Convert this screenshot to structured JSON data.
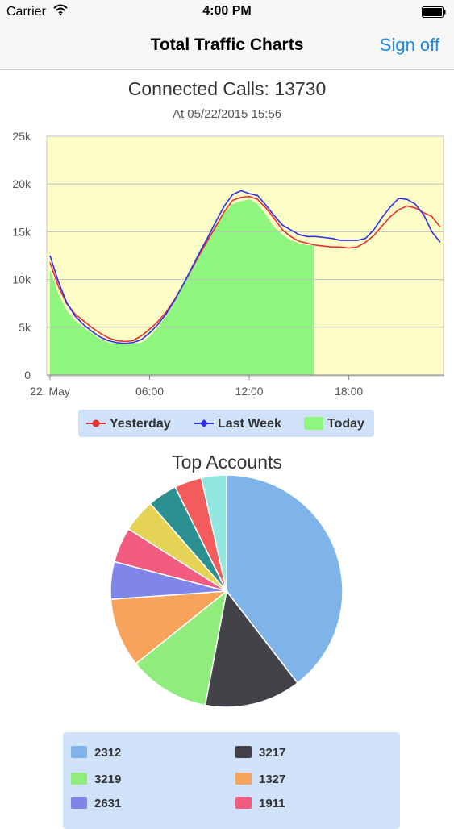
{
  "status_bar": {
    "carrier": "Carrier",
    "time": "4:00 PM"
  },
  "nav": {
    "title": "Total Traffic Charts",
    "sign_off": "Sign off"
  },
  "line_chart": {
    "title": "Connected Calls: 13730",
    "subtitle": "At 05/22/2015 15:56"
  },
  "pie_chart": {
    "title": "Top Accounts"
  },
  "colors": {
    "plot_bg": "#fdfdc8",
    "today": "#8ef57e",
    "yesterday": "#e83030",
    "last_week": "#3030e8",
    "grid": "#c0c0c0",
    "legend_bg": "#cfe2fa"
  },
  "chart_data": [
    {
      "type": "line",
      "title": "Connected Calls: 13730",
      "subtitle": "At 05/22/2015 15:56",
      "x_tick_labels": [
        "22. May",
        "06:00",
        "12:00",
        "18:00"
      ],
      "x_tick_hours": [
        0,
        6,
        12,
        18
      ],
      "x_range_hours": [
        0,
        23.7
      ],
      "ylim": [
        0,
        25000
      ],
      "y_ticks": [
        0,
        5000,
        10000,
        15000,
        20000,
        25000
      ],
      "y_tick_labels": [
        "0",
        "5k",
        "10k",
        "15k",
        "20k",
        "25k"
      ],
      "grid": true,
      "legend_position": "bottom",
      "series": [
        {
          "name": "Yesterday",
          "kind": "line",
          "color": "#e83030",
          "points": [
            [
              0,
              11800
            ],
            [
              0.5,
              9300
            ],
            [
              1,
              7500
            ],
            [
              1.5,
              6400
            ],
            [
              2,
              5700
            ],
            [
              2.5,
              5000
            ],
            [
              3,
              4400
            ],
            [
              3.5,
              3900
            ],
            [
              4,
              3600
            ],
            [
              4.5,
              3500
            ],
            [
              5,
              3600
            ],
            [
              5.5,
              4100
            ],
            [
              6,
              4800
            ],
            [
              6.5,
              5600
            ],
            [
              7,
              6600
            ],
            [
              7.5,
              7900
            ],
            [
              8,
              9400
            ],
            [
              8.5,
              11000
            ],
            [
              9,
              12600
            ],
            [
              9.5,
              14100
            ],
            [
              10,
              15600
            ],
            [
              10.5,
              17100
            ],
            [
              11,
              18300
            ],
            [
              11.5,
              18600
            ],
            [
              12,
              18700
            ],
            [
              12.5,
              18400
            ],
            [
              13,
              17500
            ],
            [
              13.5,
              16400
            ],
            [
              14,
              15200
            ],
            [
              14.5,
              14500
            ],
            [
              15,
              14000
            ],
            [
              15.5,
              13800
            ],
            [
              16,
              13600
            ],
            [
              16.5,
              13500
            ],
            [
              17,
              13400
            ],
            [
              17.5,
              13400
            ],
            [
              18,
              13300
            ],
            [
              18.5,
              13400
            ],
            [
              19,
              13900
            ],
            [
              19.5,
              14600
            ],
            [
              20,
              15600
            ],
            [
              20.5,
              16600
            ],
            [
              21,
              17300
            ],
            [
              21.5,
              17700
            ],
            [
              22,
              17500
            ],
            [
              22.5,
              17000
            ],
            [
              23,
              16600
            ],
            [
              23.5,
              15500
            ]
          ]
        },
        {
          "name": "Last Week",
          "kind": "line",
          "color": "#3030e8",
          "points": [
            [
              0,
              12500
            ],
            [
              0.5,
              9800
            ],
            [
              1,
              7600
            ],
            [
              1.5,
              6200
            ],
            [
              2,
              5300
            ],
            [
              2.5,
              4600
            ],
            [
              3,
              4000
            ],
            [
              3.5,
              3600
            ],
            [
              4,
              3400
            ],
            [
              4.5,
              3300
            ],
            [
              5,
              3400
            ],
            [
              5.5,
              3700
            ],
            [
              6,
              4400
            ],
            [
              6.5,
              5300
            ],
            [
              7,
              6400
            ],
            [
              7.5,
              7800
            ],
            [
              8,
              9400
            ],
            [
              8.5,
              11100
            ],
            [
              9,
              12800
            ],
            [
              9.5,
              14400
            ],
            [
              10,
              16100
            ],
            [
              10.5,
              17700
            ],
            [
              11,
              18900
            ],
            [
              11.5,
              19300
            ],
            [
              12,
              19000
            ],
            [
              12.5,
              18800
            ],
            [
              13,
              17800
            ],
            [
              13.5,
              16700
            ],
            [
              14,
              15700
            ],
            [
              14.5,
              15200
            ],
            [
              15,
              14700
            ],
            [
              15.5,
              14500
            ],
            [
              16,
              14500
            ],
            [
              16.5,
              14400
            ],
            [
              17,
              14300
            ],
            [
              17.5,
              14100
            ],
            [
              18,
              14100
            ],
            [
              18.5,
              14100
            ],
            [
              19,
              14300
            ],
            [
              19.5,
              15200
            ],
            [
              20,
              16500
            ],
            [
              20.5,
              17600
            ],
            [
              21,
              18500
            ],
            [
              21.5,
              18400
            ],
            [
              22,
              17900
            ],
            [
              22.5,
              16800
            ],
            [
              23,
              15000
            ],
            [
              23.5,
              13900
            ]
          ]
        },
        {
          "name": "Today",
          "kind": "area",
          "color": "#8ef57e",
          "points": [
            [
              0,
              11000
            ],
            [
              0.5,
              8500
            ],
            [
              1,
              6800
            ],
            [
              1.5,
              5700
            ],
            [
              2,
              5000
            ],
            [
              2.5,
              4400
            ],
            [
              3,
              3800
            ],
            [
              3.5,
              3400
            ],
            [
              4,
              3300
            ],
            [
              4.5,
              3300
            ],
            [
              5,
              3300
            ],
            [
              5.5,
              3400
            ],
            [
              6,
              4000
            ],
            [
              6.5,
              5000
            ],
            [
              7,
              6200
            ],
            [
              7.5,
              7600
            ],
            [
              8,
              9300
            ],
            [
              8.5,
              11000
            ],
            [
              9,
              12700
            ],
            [
              9.5,
              14300
            ],
            [
              10,
              15800
            ],
            [
              10.5,
              17000
            ],
            [
              11,
              17900
            ],
            [
              11.5,
              18200
            ],
            [
              12,
              18400
            ],
            [
              12.5,
              17900
            ],
            [
              13,
              16800
            ],
            [
              13.5,
              15500
            ],
            [
              14,
              14700
            ],
            [
              14.5,
              14100
            ],
            [
              15,
              13800
            ],
            [
              15.5,
              13600
            ],
            [
              15.93,
              13600
            ]
          ]
        }
      ]
    },
    {
      "type": "pie",
      "title": "Top Accounts",
      "slices": [
        {
          "label": "2312",
          "value": 39.5,
          "color": "#7fb4eb"
        },
        {
          "label": "3217",
          "value": 13.4,
          "color": "#424248"
        },
        {
          "label": "3219",
          "value": 11.3,
          "color": "#90ec7d"
        },
        {
          "label": "1327",
          "value": 9.6,
          "color": "#f7a35c"
        },
        {
          "label": "2631",
          "value": 5.2,
          "color": "#8085e9"
        },
        {
          "label": "1911",
          "value": 4.9,
          "color": "#f15c80"
        },
        {
          "label": "",
          "value": 4.6,
          "color": "#e4d354"
        },
        {
          "label": "",
          "value": 4.1,
          "color": "#2b908f"
        },
        {
          "label": "",
          "value": 3.8,
          "color": "#f45b5b"
        },
        {
          "label": "",
          "value": 3.5,
          "color": "#91e8e1"
        }
      ]
    }
  ]
}
